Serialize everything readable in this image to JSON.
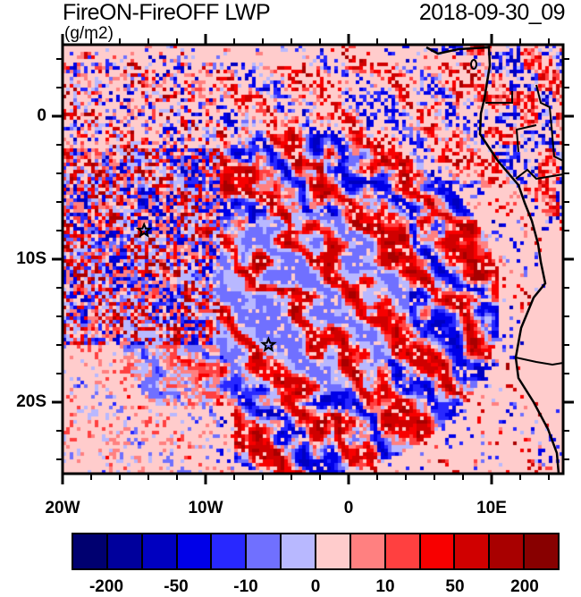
{
  "header": {
    "title": "FireON-FireOFF LWP",
    "units": "(g/m2)",
    "datetime": "2018-09-30_09"
  },
  "map": {
    "lon_range": [
      -20,
      15
    ],
    "lat_range": [
      -25,
      5
    ],
    "x_tick_labels": [
      {
        "lon": -20,
        "label": "20W"
      },
      {
        "lon": -10,
        "label": "10W"
      },
      {
        "lon": 0,
        "label": "0"
      },
      {
        "lon": 10,
        "label": "10E"
      }
    ],
    "y_tick_labels": [
      {
        "lat": 0,
        "label": "0"
      },
      {
        "lat": -10,
        "label": "10S"
      },
      {
        "lat": -20,
        "label": "20S"
      }
    ],
    "markers": [
      {
        "name": "star",
        "lon": -14.3,
        "lat": -8.0
      },
      {
        "name": "star",
        "lon": -5.6,
        "lat": -16.0
      }
    ]
  },
  "colorbar": {
    "colors": [
      "#000070",
      "#00009c",
      "#0000c0",
      "#0000e8",
      "#2828ff",
      "#7070ff",
      "#b8b8ff",
      "#ffcccc",
      "#ff8080",
      "#ff4040",
      "#f80000",
      "#d00000",
      "#a80000",
      "#880000"
    ],
    "levels": [
      -200,
      -100,
      -50,
      -20,
      -10,
      -5,
      0,
      5,
      10,
      20,
      50,
      100,
      200
    ],
    "labels": [
      {
        "level_index": 0,
        "label": "-200"
      },
      {
        "level_index": 2,
        "label": "-50"
      },
      {
        "level_index": 4,
        "label": "-10"
      },
      {
        "level_index": 6,
        "label": "0"
      },
      {
        "level_index": 8,
        "label": "10"
      },
      {
        "level_index": 10,
        "label": "50"
      },
      {
        "level_index": 12,
        "label": "200"
      }
    ]
  }
}
